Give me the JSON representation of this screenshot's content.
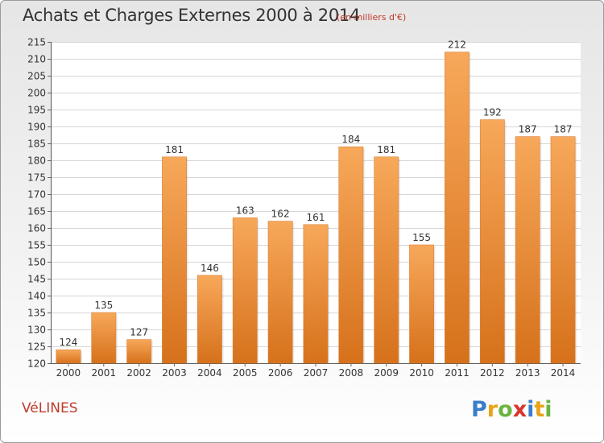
{
  "header": {
    "title": "Achats et Charges Externes 2000 à 2014",
    "subtitle": "(en milliers d'€)"
  },
  "footer": {
    "commune": "VéLINES",
    "brand": "Proxiti"
  },
  "colors": {
    "bar_light": "#f7a85a",
    "bar_dark": "#d6711b",
    "title": "#333333",
    "accent": "#c0392b"
  },
  "chart_data": {
    "type": "bar",
    "title": "Achats et Charges Externes 2000 à 2014",
    "subtitle": "(en milliers d'€)",
    "xlabel": "",
    "ylabel": "",
    "categories": [
      "2000",
      "2001",
      "2002",
      "2003",
      "2004",
      "2005",
      "2006",
      "2007",
      "2008",
      "2009",
      "2010",
      "2011",
      "2012",
      "2013",
      "2014"
    ],
    "values": [
      124,
      135,
      127,
      181,
      146,
      163,
      162,
      161,
      184,
      181,
      155,
      212,
      192,
      187,
      187
    ],
    "ylim": [
      120,
      215
    ],
    "yticks": [
      120,
      125,
      130,
      135,
      140,
      145,
      150,
      155,
      160,
      165,
      170,
      175,
      180,
      185,
      190,
      195,
      200,
      205,
      210,
      215
    ],
    "grid": true,
    "data_labels": true
  }
}
